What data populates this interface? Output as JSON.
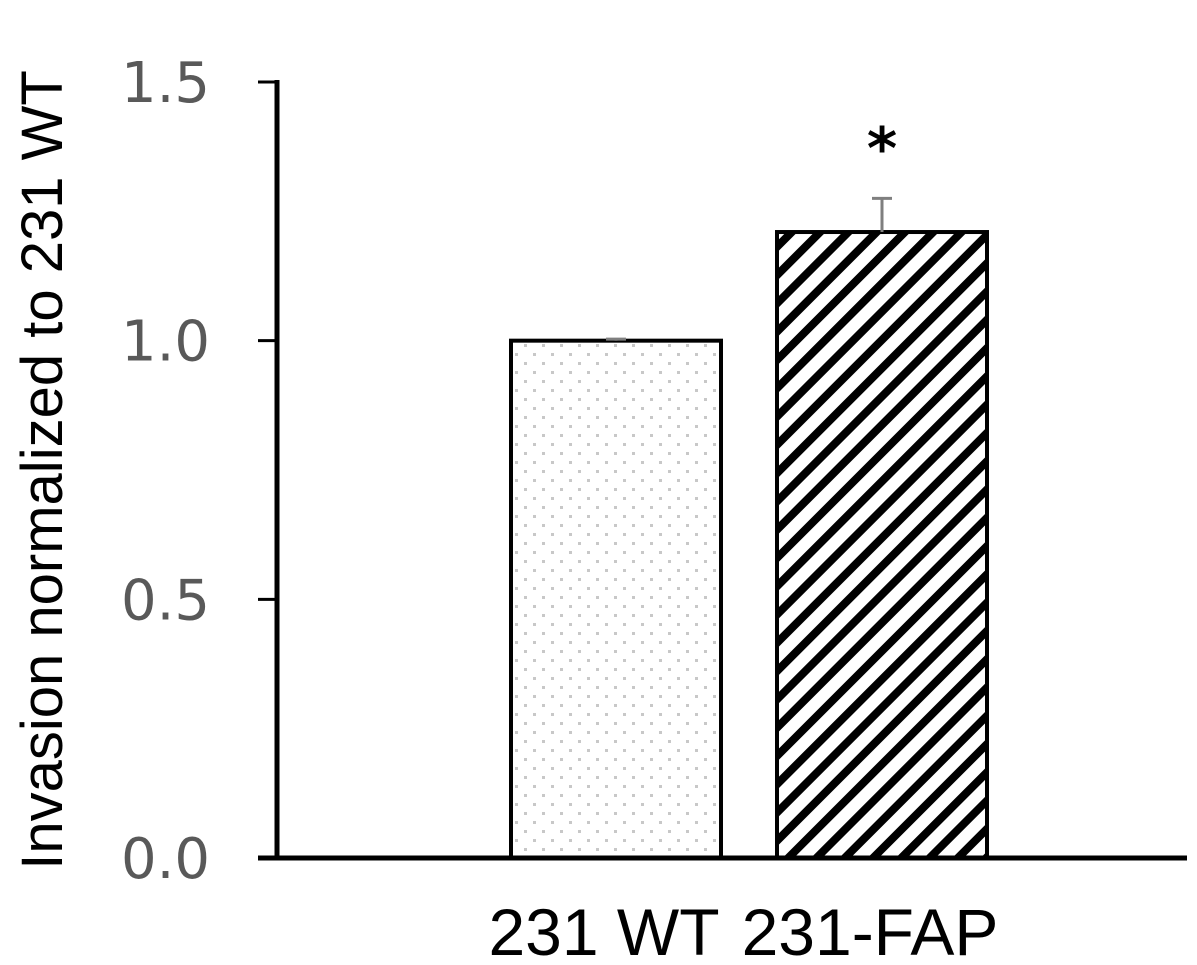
{
  "chart_data": {
    "type": "bar",
    "title": "",
    "xlabel": "",
    "ylabel": "Invasion normalized to 231 WT",
    "ylim": [
      0,
      1.5
    ],
    "yticks": [
      "0.0",
      "0.5",
      "1.0",
      "1.5"
    ],
    "grid": false,
    "legend": "none",
    "categories": [
      "231 WT",
      "231-FAP"
    ],
    "values": [
      1.0,
      1.21
    ],
    "errors": [
      0.003,
      0.065
    ],
    "annotations": [
      "",
      "*"
    ],
    "patterns": [
      "dotted",
      "diagonal-stripes"
    ],
    "colors": {
      "axis": "#000000",
      "tick_label": "#595959",
      "bar_fill": "#ffffff",
      "bar_border": "#000000",
      "dots": "#c8c8c8",
      "stripes": "#000000",
      "error_bar": "#7f7f7f"
    }
  }
}
